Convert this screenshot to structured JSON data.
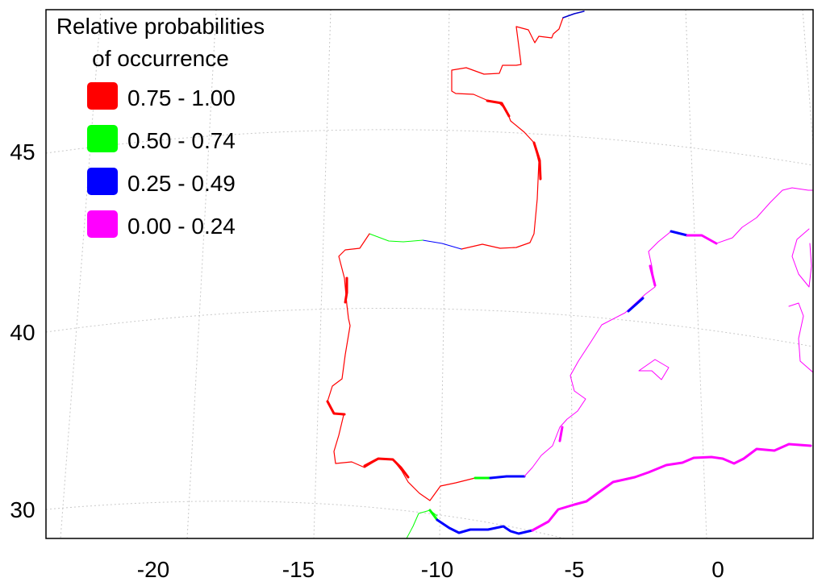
{
  "legend": {
    "title_line1": "Relative probabilities",
    "title_line2": "of occurrence",
    "items": [
      {
        "label": "0.75 - 1.00",
        "color": "#ff0000"
      },
      {
        "label": "0.50 - 0.74",
        "color": "#00ff00"
      },
      {
        "label": "0.25 - 0.49",
        "color": "#0000ff"
      },
      {
        "label": "0.00 - 0.24",
        "color": "#ff00ff"
      }
    ]
  },
  "axes": {
    "lon_ticks": [
      "-20",
      "-15",
      "-10",
      "-5",
      "0"
    ],
    "lat_ticks": [
      "45",
      "40",
      "30"
    ]
  }
}
